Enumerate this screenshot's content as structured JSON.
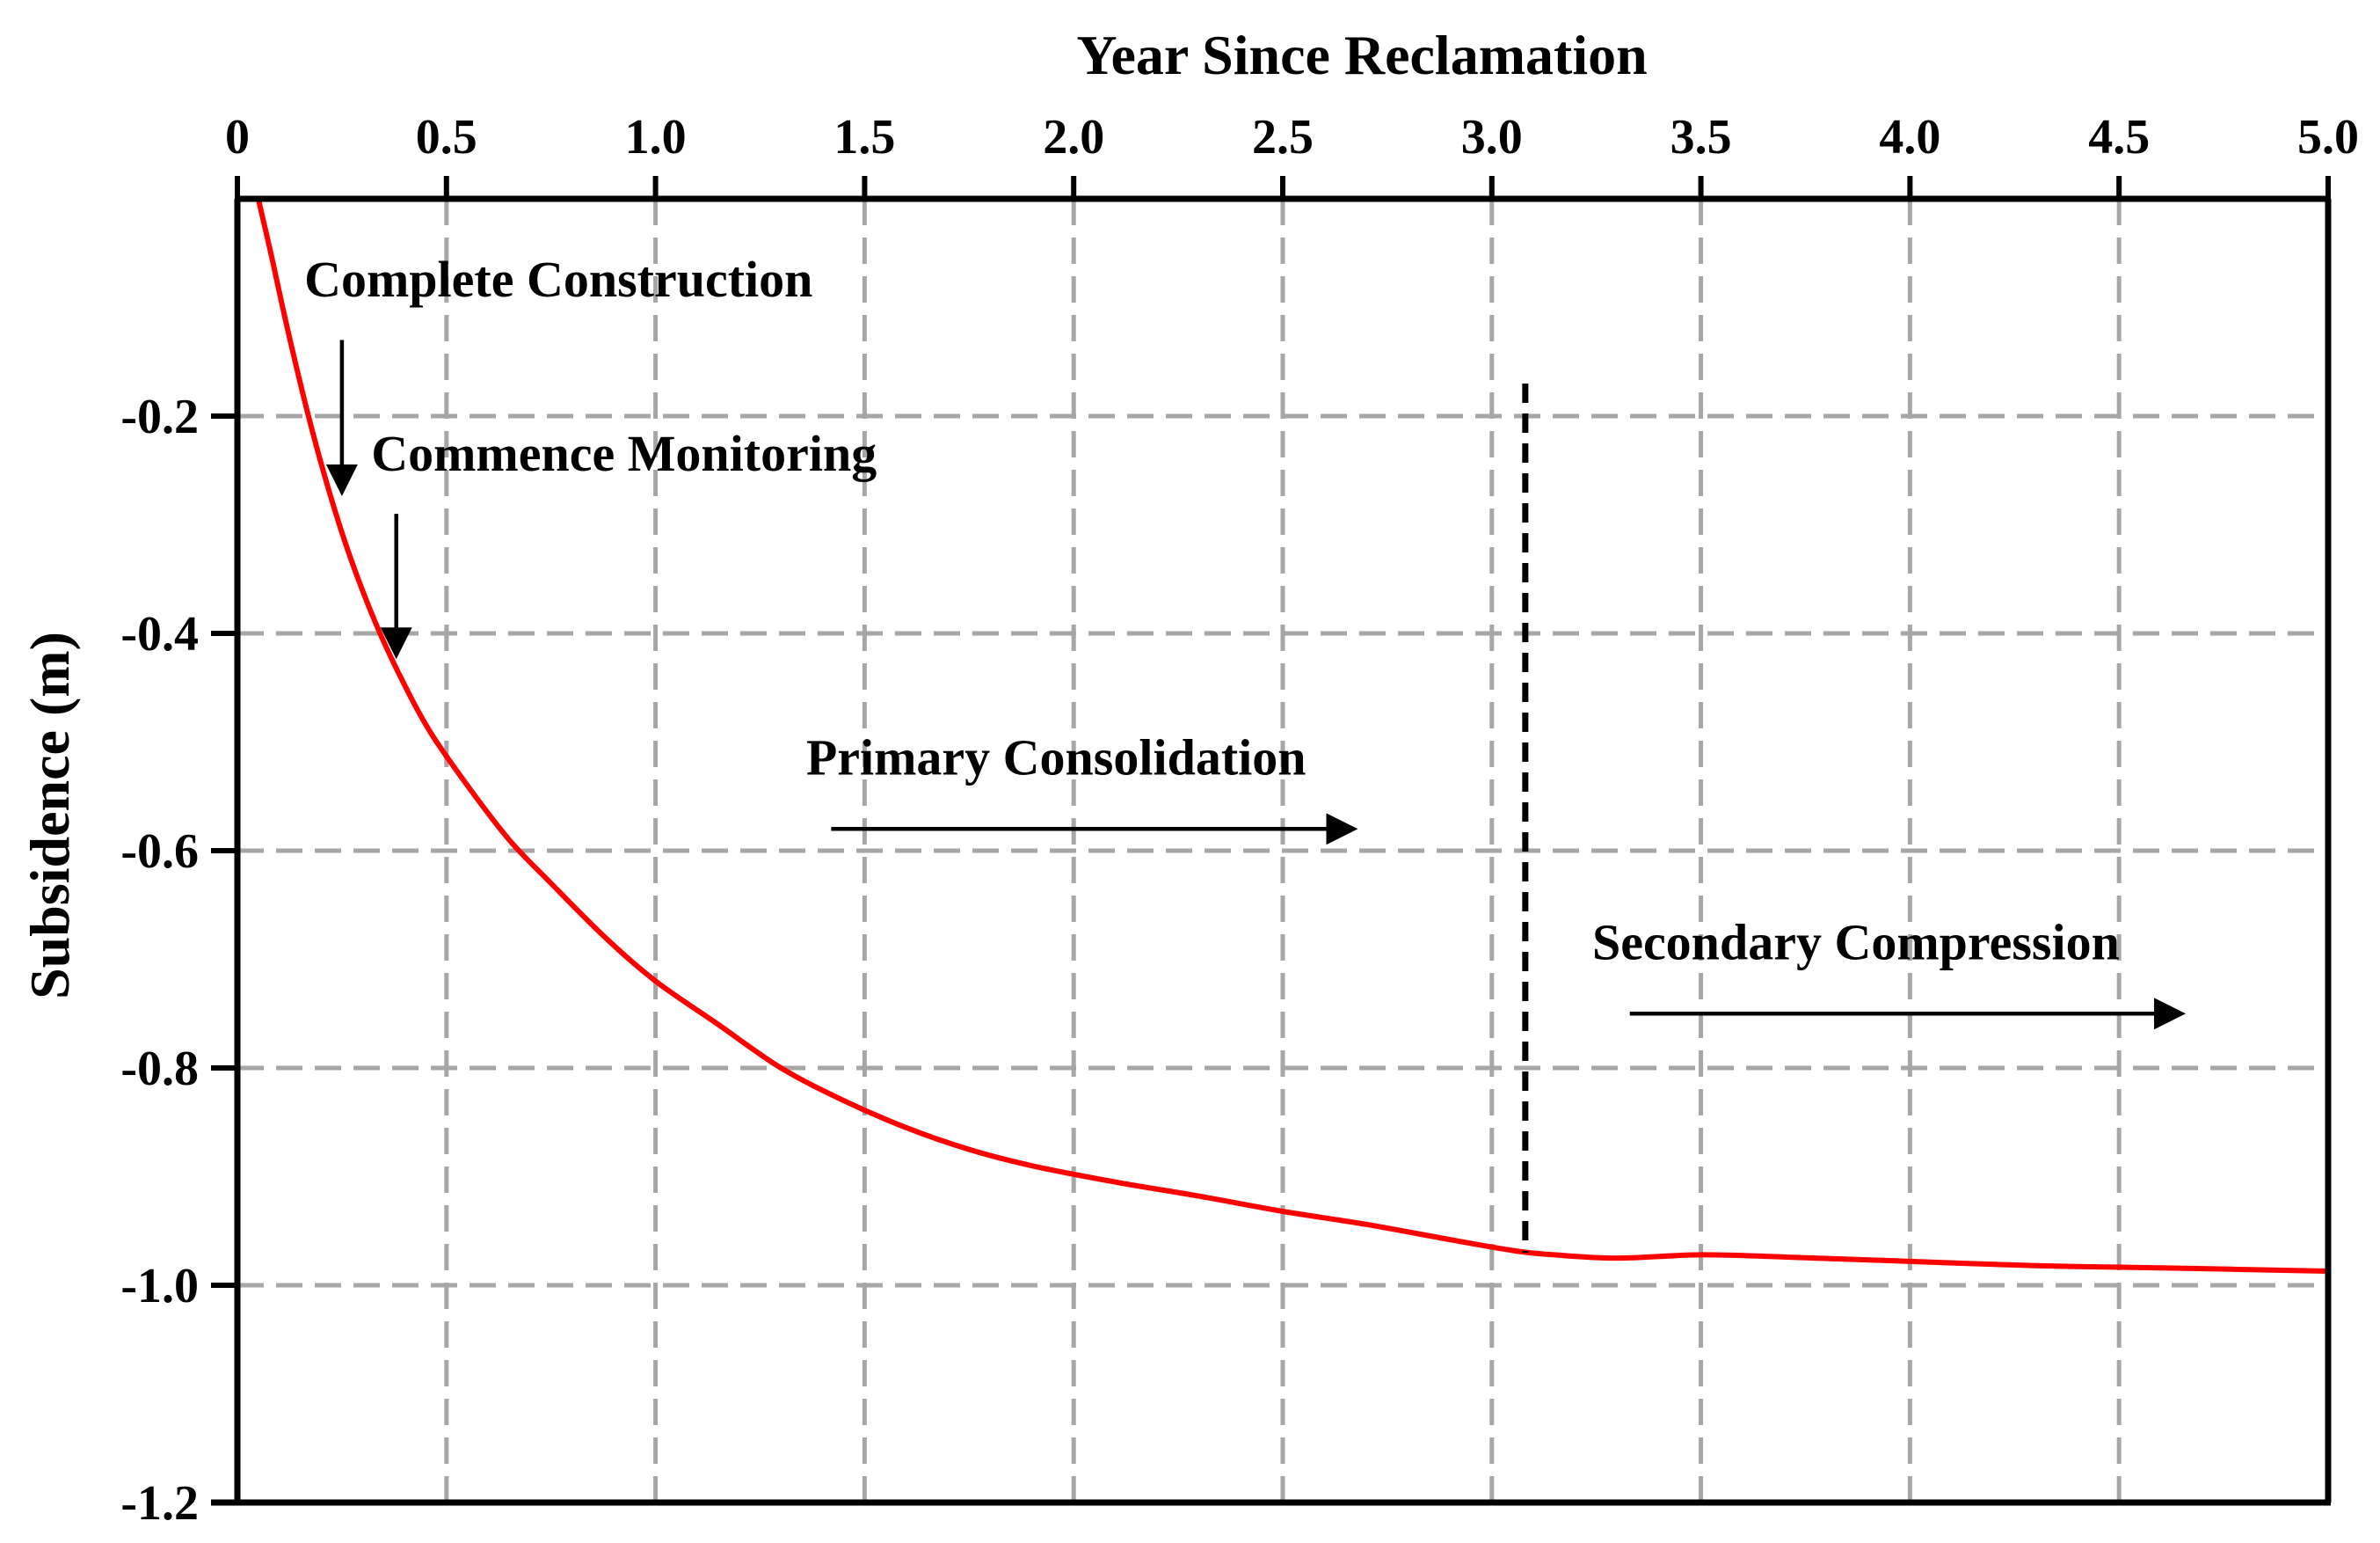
{
  "chart_data": {
    "type": "line",
    "title": "",
    "xlabel": "Year Since Reclamation",
    "ylabel": "Subsidence (m)",
    "xlim": [
      0,
      5.0
    ],
    "ylim": [
      -1.2,
      0
    ],
    "x_ticks": [
      0,
      0.5,
      1.0,
      1.5,
      2.0,
      2.5,
      3.0,
      3.5,
      4.0,
      4.5,
      5.0
    ],
    "x_tick_labels": [
      "0",
      "0.5",
      "1.0",
      "1.5",
      "2.0",
      "2.5",
      "3.0",
      "3.5",
      "4.0",
      "4.5",
      "5.0"
    ],
    "y_ticks": [
      -0.2,
      -0.4,
      -0.6,
      -0.8,
      -1.0,
      -1.2
    ],
    "y_tick_labels": [
      "-0.2",
      "-0.4",
      "-0.6",
      "-0.8",
      "-1.0",
      "-1.2"
    ],
    "grid": true,
    "series": [
      {
        "name": "Subsidence",
        "color": "#ff0000",
        "x": [
          0.05,
          0.08,
          0.12,
          0.17,
          0.22,
          0.27,
          0.33,
          0.39,
          0.46,
          0.55,
          0.65,
          0.75,
          0.88,
          1.0,
          1.15,
          1.3,
          1.45,
          1.6,
          1.75,
          1.9,
          2.1,
          2.3,
          2.5,
          2.7,
          2.9,
          3.05,
          3.15,
          3.3,
          3.5,
          3.7,
          4.0,
          4.3,
          4.6,
          5.0
        ],
        "y": [
          0.0,
          -0.05,
          -0.12,
          -0.2,
          -0.27,
          -0.33,
          -0.39,
          -0.44,
          -0.49,
          -0.54,
          -0.59,
          -0.63,
          -0.68,
          -0.72,
          -0.76,
          -0.8,
          -0.83,
          -0.855,
          -0.875,
          -0.89,
          -0.905,
          -0.918,
          -0.932,
          -0.944,
          -0.958,
          -0.968,
          -0.972,
          -0.975,
          -0.972,
          -0.974,
          -0.978,
          -0.982,
          -0.984,
          -0.987
        ]
      }
    ],
    "phase_divider": {
      "x": 3.08,
      "y_top": -0.17,
      "y_bottom": -0.97
    },
    "annotations": [
      {
        "text": "Complete Construction",
        "text_x": 0.16,
        "text_y": -0.09,
        "arrow_x": 0.25,
        "arrow_from_y": -0.13,
        "arrow_to_y": -0.27,
        "direction": "down"
      },
      {
        "text": "Commence Monitoring",
        "text_x": 0.32,
        "text_y": -0.25,
        "arrow_x": 0.38,
        "arrow_from_y": -0.29,
        "arrow_to_y": -0.42,
        "direction": "down"
      },
      {
        "text": "Primary Consolidation",
        "text_x": 1.36,
        "text_y": -0.53,
        "arrow_x1": 1.42,
        "arrow_x2": 2.67,
        "arrow_y": -0.58,
        "direction": "right"
      },
      {
        "text": "Secondary Compression",
        "text_x": 3.24,
        "text_y": -0.7,
        "arrow_x1": 3.33,
        "arrow_x2": 4.65,
        "arrow_y": -0.75,
        "direction": "right"
      }
    ]
  }
}
